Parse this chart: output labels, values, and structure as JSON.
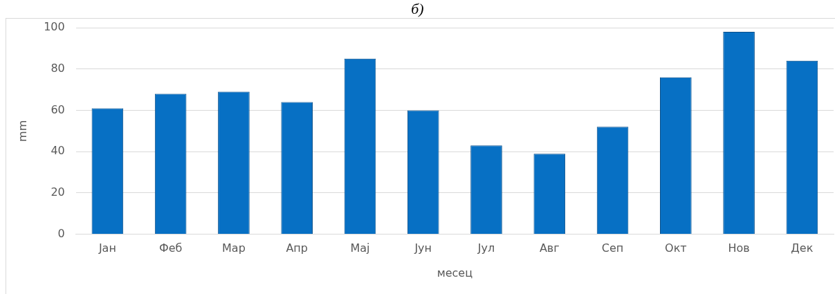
{
  "chart_data": {
    "type": "bar",
    "title": "б)",
    "xlabel": "месец",
    "ylabel": "mm",
    "categories": [
      "Јан",
      "Феб",
      "Мар",
      "Апр",
      "Мај",
      "Јун",
      "Јул",
      "Авг",
      "Сеп",
      "Окт",
      "Нов",
      "Дек"
    ],
    "values": [
      61,
      68,
      69,
      64,
      85,
      60,
      43,
      39,
      52,
      76,
      98,
      84
    ],
    "color": "#0770c4",
    "ylim": [
      0,
      100
    ],
    "yticks": [
      0,
      20,
      40,
      60,
      80,
      100
    ],
    "grid": "y",
    "legend": false
  }
}
